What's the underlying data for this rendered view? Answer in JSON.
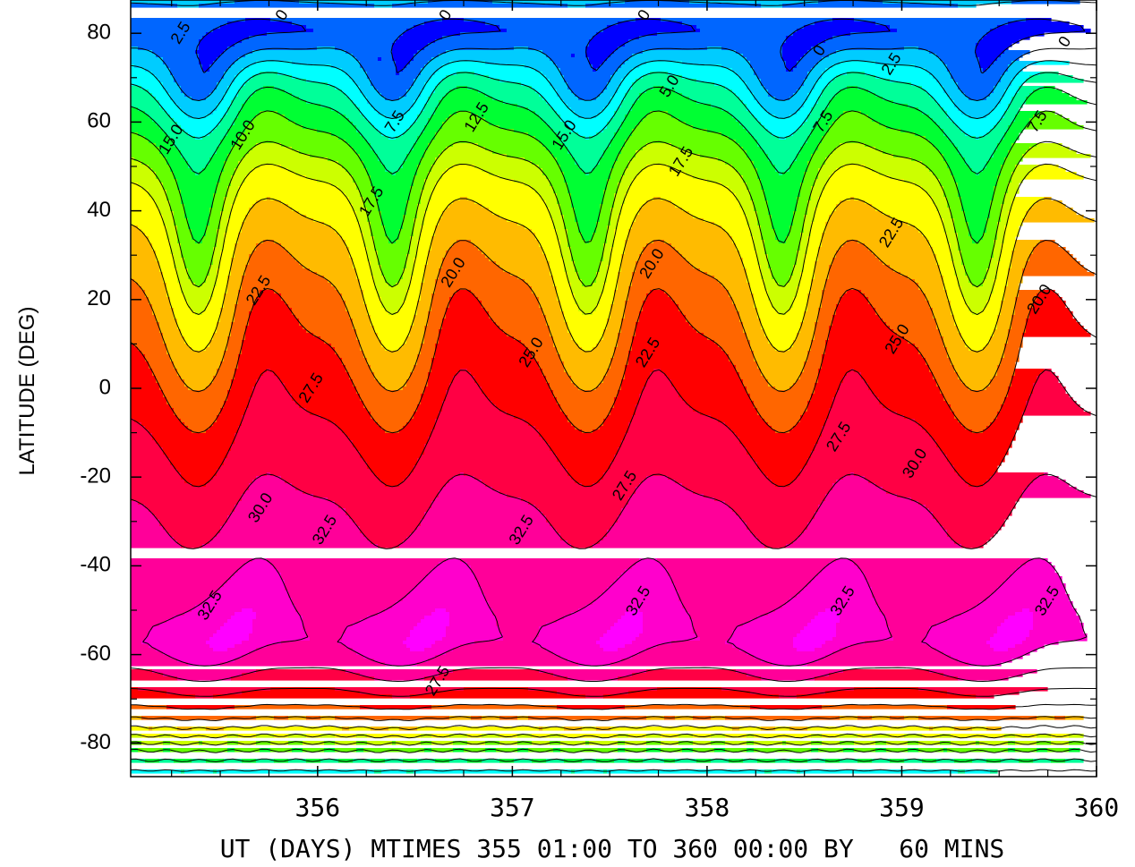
{
  "chart_data": {
    "type": "heatmap",
    "title": "",
    "xlabel": "UT (DAYS) MTIMES 355 01:00 TO 360 00:00 BY   60 MINS",
    "ylabel": "LATITUDE (DEG)",
    "xlim": [
      355.04,
      360.0
    ],
    "ylim": [
      -87.5,
      87.5
    ],
    "x_ticks": [
      356,
      357,
      358,
      359,
      360
    ],
    "x_tick_labels": [
      "356",
      "357",
      "358",
      "359",
      "360"
    ],
    "y_ticks": [
      80,
      60,
      40,
      20,
      0,
      -20,
      -40,
      -60,
      -80
    ],
    "y_tick_labels": [
      "80",
      "60",
      "40",
      "20",
      "0",
      "-20",
      "-40",
      "-60",
      "-80"
    ],
    "contour_interval": 2.5,
    "contour_levels": [
      0,
      2.5,
      5.0,
      7.5,
      10.0,
      12.5,
      15.0,
      17.5,
      20.0,
      22.5,
      25.0,
      27.5,
      30.0,
      32.5
    ],
    "colors": [
      "#0000ff",
      "#0066ff",
      "#00ccff",
      "#00ffff",
      "#00ff99",
      "#00ff33",
      "#66ff00",
      "#ccff00",
      "#ffff00",
      "#ffbb00",
      "#ff6600",
      "#ff0000",
      "#ff0044",
      "#ff0099",
      "#ff00cc",
      "#ff00ff"
    ],
    "color_breaks": [
      -2.5,
      0,
      2.5,
      5.0,
      7.5,
      10.0,
      12.5,
      15.0,
      17.5,
      20.0,
      22.5,
      25.0,
      27.5,
      30.0,
      32.5,
      34.0
    ],
    "profile_lat": [
      -87.5,
      -82,
      -78,
      -74,
      -70,
      -66,
      -62,
      -58,
      -54,
      -48,
      -40,
      -30,
      -20,
      -10,
      0,
      10,
      20,
      30,
      40,
      45,
      50,
      55,
      60,
      65,
      70,
      75,
      80,
      85,
      87.5
    ],
    "profile_val": [
      6,
      12,
      18,
      23,
      26.5,
      29,
      31.5,
      33.3,
      33.3,
      32.6,
      31.5,
      30.3,
      29.0,
      27.3,
      25.6,
      23.8,
      22.0,
      20.2,
      18.5,
      16.5,
      14.5,
      12.5,
      10.2,
      7.8,
      5.3,
      2.8,
      0.3,
      1.6,
      3.0
    ],
    "wave_period_days": 1.0,
    "wave_phase_day": 355.6,
    "contour_labels": [
      {
        "text": "2.5",
        "x": 355.3,
        "y": 80
      },
      {
        "text": "0",
        "x": 355.82,
        "y": 84
      },
      {
        "text": "15.0",
        "x": 355.25,
        "y": 56
      },
      {
        "text": "10.0",
        "x": 355.62,
        "y": 57
      },
      {
        "text": "7.5",
        "x": 356.4,
        "y": 60
      },
      {
        "text": "12.5",
        "x": 356.82,
        "y": 61
      },
      {
        "text": "0",
        "x": 356.66,
        "y": 84
      },
      {
        "text": "17.5",
        "x": 356.28,
        "y": 42
      },
      {
        "text": "22.5",
        "x": 355.7,
        "y": 22
      },
      {
        "text": "20.0",
        "x": 356.7,
        "y": 26
      },
      {
        "text": "15.0",
        "x": 357.27,
        "y": 57
      },
      {
        "text": "5.0",
        "x": 357.81,
        "y": 68
      },
      {
        "text": "0",
        "x": 357.68,
        "y": 84
      },
      {
        "text": "17.5",
        "x": 357.87,
        "y": 51
      },
      {
        "text": "20.0",
        "x": 357.72,
        "y": 28
      },
      {
        "text": "22.5",
        "x": 357.7,
        "y": 8
      },
      {
        "text": "25.0",
        "x": 357.1,
        "y": 8
      },
      {
        "text": "27.5",
        "x": 355.97,
        "y": 0
      },
      {
        "text": "7.5",
        "x": 358.6,
        "y": 60
      },
      {
        "text": "2.5",
        "x": 358.95,
        "y": 73
      },
      {
        "text": "0",
        "x": 358.58,
        "y": 76
      },
      {
        "text": "22.5",
        "x": 358.95,
        "y": 35
      },
      {
        "text": "25.0",
        "x": 358.98,
        "y": 11
      },
      {
        "text": "27.5",
        "x": 358.68,
        "y": -11
      },
      {
        "text": "30.0",
        "x": 359.07,
        "y": -17
      },
      {
        "text": "20.0",
        "x": 359.71,
        "y": 20
      },
      {
        "text": "7.5",
        "x": 359.7,
        "y": 60
      },
      {
        "text": "0",
        "x": 359.84,
        "y": 78
      },
      {
        "text": "27.5",
        "x": 357.58,
        "y": -22
      },
      {
        "text": "30.0",
        "x": 355.71,
        "y": -27
      },
      {
        "text": "32.5",
        "x": 356.04,
        "y": -32
      },
      {
        "text": "32.5",
        "x": 357.05,
        "y": -32
      },
      {
        "text": "32.5",
        "x": 355.45,
        "y": -49
      },
      {
        "text": "32.5",
        "x": 357.65,
        "y": -48
      },
      {
        "text": "32.5",
        "x": 358.7,
        "y": -48
      },
      {
        "text": "32.5",
        "x": 359.75,
        "y": -48
      },
      {
        "text": "27.5",
        "x": 356.62,
        "y": -66
      }
    ]
  }
}
